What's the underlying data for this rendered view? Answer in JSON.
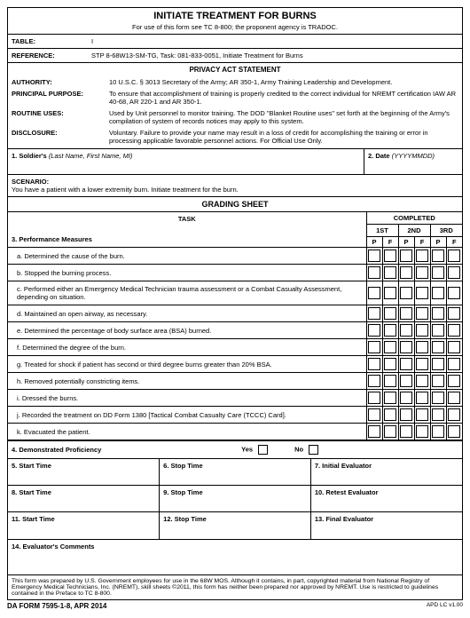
{
  "header": {
    "title": "INITIATE TREATMENT FOR BURNS",
    "subtitle": "For use of this form see TC 8-800; the proponent agency is TRADOC."
  },
  "topRows": [
    {
      "label": "TABLE:",
      "value": "I"
    },
    {
      "label": "REFERENCE:",
      "value": "STP 8-68W13-SM-TG, Task:  081-833-0051, Initiate Treatment for Burns"
    }
  ],
  "privacy": {
    "heading": "PRIVACY ACT STATEMENT",
    "items": [
      {
        "k": "AUTHORITY:",
        "v": "10 U.S.C. § 3013 Secretary of the Army; AR 350-1, Army Training Leadership and Development."
      },
      {
        "k": "PRINCIPAL PURPOSE:",
        "v": "To ensure that accomplishment of training is properly credited to the correct individual for NREMT certification IAW AR 40-68, AR 220-1 and AR 350-1."
      },
      {
        "k": "ROUTINE USES:",
        "v": "Used by Unit personnel to monitor training.  The DOD \"Blanket Routine uses\" set forth at the beginning of the Army's compilation of system of records notices may apply to this system."
      },
      {
        "k": "DISCLOSURE:",
        "v": "Voluntary.  Failure to provide your name may result in a loss of credit for accomplishing the training or error in processing applicable favorable personnel actions.  For Official Use Only."
      }
    ]
  },
  "soldier": {
    "leftLabel": "1. Soldier's",
    "leftHint": "(Last Name, First Name, MI)",
    "rightLabel": "2. Date",
    "rightHint": "(YYYYMMDD)"
  },
  "scenario": {
    "label": "SCENARIO:",
    "text": "You have a patient with a lower extremity burn.  Initiate treatment for the burn."
  },
  "grading": {
    "heading": "GRADING SHEET",
    "taskHead": "TASK",
    "completedHead": "COMPLETED",
    "attempts": [
      "1ST",
      "2ND",
      "3RD"
    ],
    "pf": [
      "P",
      "F"
    ],
    "measuresLabel": "3.  Performance Measures",
    "measures": [
      "a. Determined the cause of the burn.",
      "b. Stopped the burning process.",
      "c. Performed either an Emergency Medical Technician trauma assessment or a Combat Casualty Assessment, depending on situation.",
      "d. Maintained an open airway, as necessary.",
      "e. Determined the percentage of body surface area (BSA) burned.",
      "f. Determined the degree of the burn.",
      "g. Treated for shock if patient has second or third degree burns greater than 20% BSA.",
      "h. Removed potentially constricting items.",
      "i. Dressed the burns.",
      "j. Recorded the treatment on DD Form 1380 [Tactical Combat Casualty Care (TCCC) Card].",
      "k. Evacuated the patient."
    ]
  },
  "proficiency": {
    "label": "4.  Demonstrated Proficiency",
    "yes": "Yes",
    "no": "No"
  },
  "times": [
    [
      "5.  Start Time",
      "6.  Stop Time",
      "7.  Initial Evaluator"
    ],
    [
      "8.  Start Time",
      "9.  Stop Time",
      "10. Retest Evaluator"
    ],
    [
      "11.  Start Time",
      "12.  Stop Time",
      "13.  Final Evaluator"
    ]
  ],
  "commentsLabel": "14.  Evaluator's Comments",
  "footnote": "This form was prepared by U.S. Government employees for use in the 68W MOS.  Although it contains, in part, copyrighted material from National Registry of Emergency Medical Technicians, Inc. (NREMT), skill sheets ©2011, this form has neither been prepared nor approved by NREMT.  Use is restricted to guidelines contained in the Preface to TC 8-800.",
  "bottom": {
    "left": "DA FORM 7595-1-8, APR 2014",
    "right": "APD LC v1.00"
  },
  "style": {
    "borderColor": "#000000",
    "background": "#ffffff",
    "fontBase": 7.5
  }
}
